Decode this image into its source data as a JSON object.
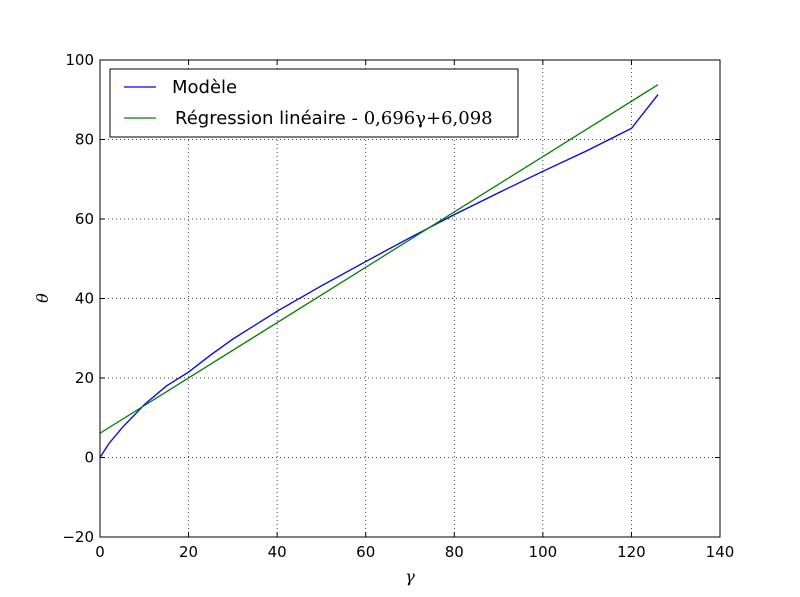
{
  "chart_data": {
    "type": "line",
    "xlabel": "γ",
    "ylabel": "θ",
    "xlim": [
      0,
      140
    ],
    "ylim": [
      -20,
      100
    ],
    "xticks": [
      0,
      20,
      40,
      60,
      80,
      100,
      120,
      140
    ],
    "yticks": [
      -20,
      0,
      20,
      40,
      60,
      80,
      100
    ],
    "xtick_labels": [
      "0",
      "20",
      "40",
      "60",
      "80",
      "100",
      "120",
      "140"
    ],
    "ytick_labels": [
      "−20",
      "0",
      "20",
      "40",
      "60",
      "80",
      "100"
    ],
    "grid": true,
    "legend_position": "top-left",
    "series": [
      {
        "name": "Modèle",
        "color": "#0000ff",
        "x": [
          0,
          2,
          5,
          10,
          15,
          20,
          25,
          30,
          40,
          50,
          60,
          70,
          80,
          90,
          100,
          110,
          120,
          126
        ],
        "y": [
          0,
          3.5,
          7.5,
          13.3,
          18.0,
          21.5,
          25.8,
          29.8,
          36.8,
          43.2,
          49.3,
          55.3,
          61.1,
          66.6,
          72.0,
          77.2,
          82.8,
          91.3
        ]
      },
      {
        "name": "Régression linéaire - ",
        "name_math": "0,696γ+6,098",
        "color": "#008000",
        "x": [
          0,
          126
        ],
        "y": [
          6.098,
          93.79
        ]
      }
    ]
  }
}
